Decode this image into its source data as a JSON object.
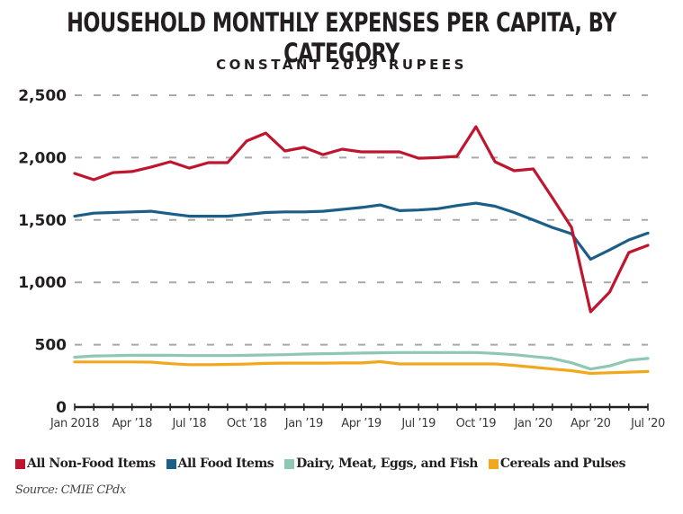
{
  "chart_data": {
    "type": "line",
    "title": "HOUSEHOLD MONTHLY EXPENSES PER CAPITA, BY CATEGORY",
    "subtitle": "CONSTANT 2019 RUPEES",
    "xlabel": "",
    "ylabel": "",
    "ylim": [
      0,
      2500
    ],
    "yticks": [
      0,
      500,
      1000,
      1500,
      2000,
      2500
    ],
    "ytick_labels": [
      "0",
      "500",
      "1,000",
      "1,500",
      "2,000",
      "2,500"
    ],
    "grid": true,
    "x": [
      "Jan 2018",
      "Feb 2018",
      "Mar 2018",
      "Apr 2018",
      "May 2018",
      "Jun 2018",
      "Jul 2018",
      "Aug 2018",
      "Sep 2018",
      "Oct 2018",
      "Nov 2018",
      "Dec 2018",
      "Jan 2019",
      "Feb 2019",
      "Mar 2019",
      "Apr 2019",
      "May 2019",
      "Jun 2019",
      "Jul 2019",
      "Aug 2019",
      "Sep 2019",
      "Oct 2019",
      "Nov 2019",
      "Dec 2019",
      "Jan 2020",
      "Feb 2020",
      "Mar 2020",
      "Apr 2020",
      "May 2020",
      "Jun 2020",
      "Jul 2020"
    ],
    "xtick_labels": [
      {
        "index": 0,
        "label": "Jan 2018"
      },
      {
        "index": 3,
        "label": "Apr '18"
      },
      {
        "index": 6,
        "label": "Jul '18"
      },
      {
        "index": 9,
        "label": "Oct '18"
      },
      {
        "index": 12,
        "label": "Jan '19"
      },
      {
        "index": 15,
        "label": "Apr '19"
      },
      {
        "index": 18,
        "label": "Jul '19"
      },
      {
        "index": 21,
        "label": "Oct '19"
      },
      {
        "index": 24,
        "label": "Jan '20"
      },
      {
        "index": 27,
        "label": "Apr '20"
      },
      {
        "index": 30,
        "label": "Jul '20"
      }
    ],
    "series": [
      {
        "name": "All Non-Food Items",
        "color": "#c0152f",
        "values": [
          1873,
          1823,
          1880,
          1888,
          1924,
          1967,
          1916,
          1960,
          1960,
          2133,
          2197,
          2053,
          2082,
          2024,
          2068,
          2046,
          2046,
          2046,
          1995,
          2000,
          2010,
          2248,
          1967,
          1895,
          1909,
          1679,
          1441,
          764,
          922,
          1239,
          1297
        ]
      },
      {
        "name": "All Food Items",
        "color": "#1b5e87",
        "values": [
          1530,
          1555,
          1560,
          1565,
          1570,
          1550,
          1530,
          1530,
          1530,
          1545,
          1560,
          1565,
          1565,
          1570,
          1585,
          1600,
          1620,
          1575,
          1580,
          1590,
          1615,
          1635,
          1610,
          1560,
          1500,
          1440,
          1390,
          1185,
          1260,
          1340,
          1395
        ]
      },
      {
        "name": "Dairy, Meat, Eggs, and Fish",
        "color": "#8fc7b5",
        "values": [
          400,
          410,
          412,
          415,
          415,
          415,
          413,
          413,
          413,
          415,
          418,
          420,
          425,
          428,
          430,
          433,
          435,
          437,
          437,
          437,
          437,
          437,
          430,
          420,
          405,
          390,
          355,
          305,
          330,
          375,
          390
        ]
      },
      {
        "name": "Cereals and Pulses",
        "color": "#f2a81d",
        "values": [
          362,
          362,
          362,
          362,
          360,
          348,
          340,
          340,
          342,
          345,
          350,
          352,
          352,
          352,
          354,
          354,
          364,
          346,
          346,
          346,
          346,
          346,
          346,
          334,
          320,
          305,
          292,
          270,
          275,
          280,
          285
        ]
      }
    ],
    "legend_position": "bottom-left",
    "source": "Source: CMIE CPdx"
  }
}
